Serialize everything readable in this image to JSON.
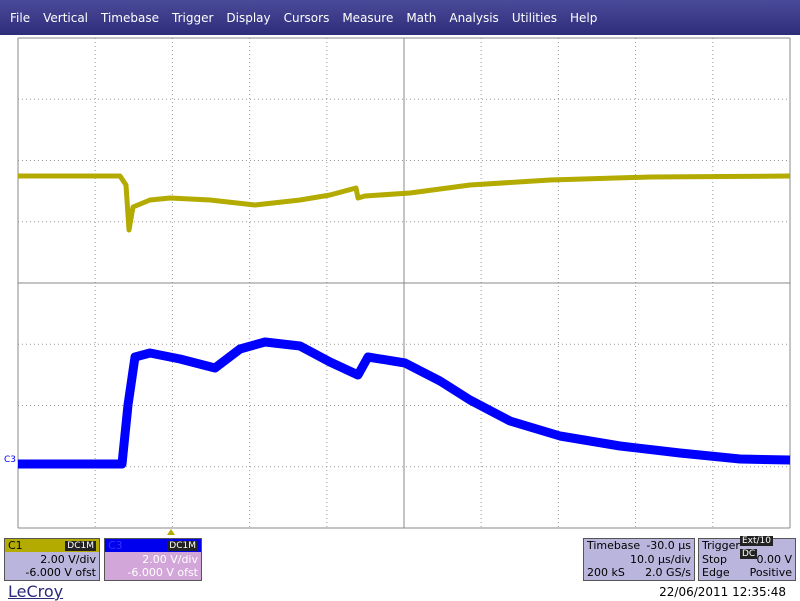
{
  "menu": [
    "File",
    "Vertical",
    "Timebase",
    "Trigger",
    "Display",
    "Cursors",
    "Measure",
    "Math",
    "Analysis",
    "Utilities",
    "Help"
  ],
  "channels": [
    {
      "name": "C1",
      "coupling": "DC1M",
      "scale": "2.00 V/div",
      "offset": "-6.000 V ofst"
    },
    {
      "name": "C3",
      "coupling": "DC1M",
      "scale": "2.00 V/div",
      "offset": "-6.000 V ofst"
    }
  ],
  "timebase": {
    "title": "Timebase",
    "delay": "-30.0 µs",
    "scale": "10.0 µs/div",
    "samples": "200 kS",
    "rate": "2.0 GS/s"
  },
  "trigger": {
    "title": "Trigger",
    "source": "Ext/10",
    "coupling": "DC",
    "mode": "Stop",
    "level": "0.00 V",
    "type": "Edge",
    "slope": "Positive"
  },
  "footer": {
    "brand": "LeCroy",
    "timestamp": "22/06/2011 12:35:48"
  },
  "trace_label": "C3"
}
